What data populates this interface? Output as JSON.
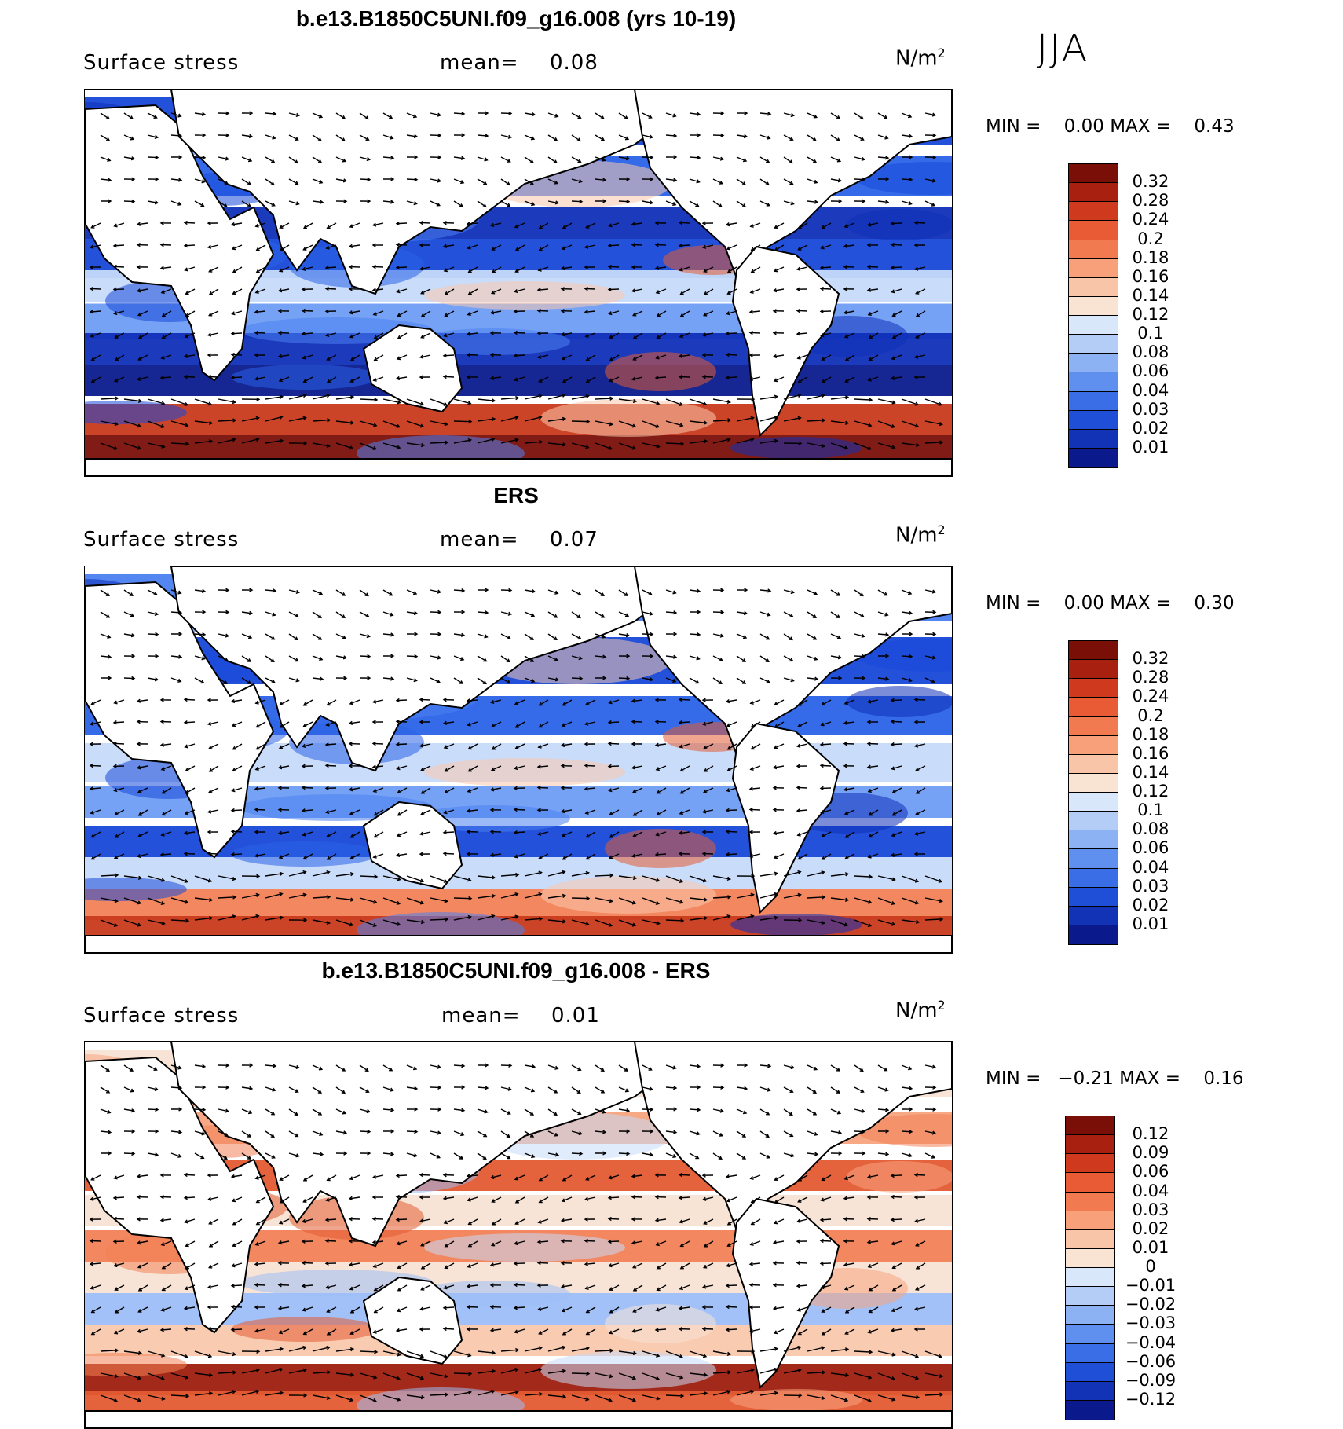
{
  "season": "JJA",
  "colors": {
    "land": "#ffffff",
    "coast": "#000000",
    "arrow": "#000000"
  },
  "palette_seq": [
    "#0a1a8c",
    "#0f2fb8",
    "#1748d8",
    "#2a62e8",
    "#4a80f0",
    "#6f9df5",
    "#9cbef8",
    "#c6dafa",
    "#f8e3d4",
    "#f9c8ad",
    "#f7a47f",
    "#f28156",
    "#e35b32",
    "#c93a1c",
    "#9e1f0e",
    "#7a0f08"
  ],
  "panels": [
    {
      "id": "model",
      "title": "b.e13.B1850C5UNI.f09_g16.008 (yrs 10-19)",
      "variable": "Surface stress",
      "mean_label": "mean=",
      "mean_value": "0.08",
      "units": "N/m",
      "units_exp": "2",
      "min_label": "MIN =",
      "min_value": "0.00",
      "max_label": "MAX =",
      "max_value": "0.43",
      "colorbar_labels": [
        "0.32",
        "0.28",
        "0.24",
        "0.2",
        "0.18",
        "0.16",
        "0.14",
        "0.12",
        "0.1",
        "0.08",
        "0.06",
        "0.04",
        "0.03",
        "0.02",
        "0.01"
      ],
      "colorbar_colors": [
        "#7a0f08",
        "#a8200f",
        "#cf3a1e",
        "#e85b34",
        "#f27a50",
        "#f7a07a",
        "#f9c5a8",
        "#f9e4d4",
        "#d9e7fa",
        "#b3cdf7",
        "#8cb2f4",
        "#5f8fef",
        "#3a6ee6",
        "#1f4fd6",
        "#1233b5",
        "#0a1a8c"
      ]
    },
    {
      "id": "obs",
      "title": "ERS",
      "variable": "Surface stress",
      "mean_label": "mean=",
      "mean_value": "0.07",
      "units": "N/m",
      "units_exp": "2",
      "min_label": "MIN =",
      "min_value": "0.00",
      "max_label": "MAX =",
      "max_value": "0.30",
      "colorbar_labels": [
        "0.32",
        "0.28",
        "0.24",
        "0.2",
        "0.18",
        "0.16",
        "0.14",
        "0.12",
        "0.1",
        "0.08",
        "0.06",
        "0.04",
        "0.03",
        "0.02",
        "0.01"
      ],
      "colorbar_colors": [
        "#7a0f08",
        "#a8200f",
        "#cf3a1e",
        "#e85b34",
        "#f27a50",
        "#f7a07a",
        "#f9c5a8",
        "#f9e4d4",
        "#d9e7fa",
        "#b3cdf7",
        "#8cb2f4",
        "#5f8fef",
        "#3a6ee6",
        "#1f4fd6",
        "#1233b5",
        "#0a1a8c"
      ]
    },
    {
      "id": "diff",
      "title": "b.e13.B1850C5UNI.f09_g16.008 - ERS",
      "variable": "Surface stress",
      "mean_label": "mean=",
      "mean_value": "0.01",
      "units": "N/m",
      "units_exp": "2",
      "min_label": "MIN =",
      "min_value": "−0.21",
      "max_label": "MAX =",
      "max_value": "0.16",
      "colorbar_labels": [
        "0.12",
        "0.09",
        "0.06",
        "0.04",
        "0.03",
        "0.02",
        "0.01",
        "0",
        "−0.01",
        "−0.02",
        "−0.03",
        "−0.04",
        "−0.06",
        "−0.09",
        "−0.12"
      ],
      "colorbar_colors": [
        "#7a0f08",
        "#a8200f",
        "#cf3a1e",
        "#e85b34",
        "#f27a50",
        "#f7a07a",
        "#f9c5a8",
        "#f9e4d4",
        "#d9e7fa",
        "#b3cdf7",
        "#8cb2f4",
        "#5f8fef",
        "#3a6ee6",
        "#1f4fd6",
        "#1233b5",
        "#0a1a8c"
      ]
    }
  ]
}
